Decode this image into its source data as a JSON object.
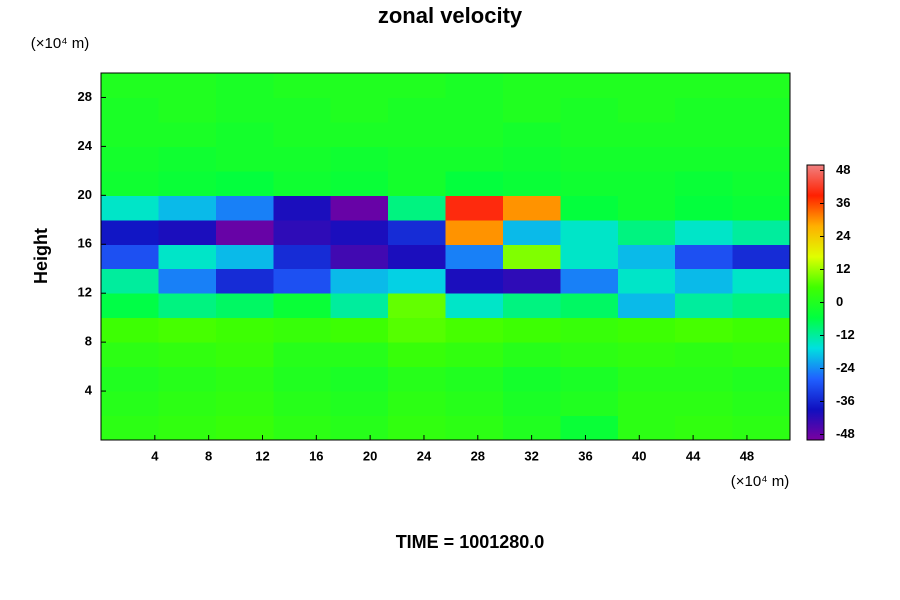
{
  "chart_data": {
    "type": "heatmap",
    "title": "zonal velocity",
    "xlabel_units": "(×10⁴ m)",
    "ylabel": "Height",
    "ylabel_units": "(×10⁴ m)",
    "footer": "TIME = 1001280.0",
    "xlim": [
      0,
      51.2
    ],
    "xticks": [
      4,
      8,
      12,
      16,
      20,
      24,
      28,
      32,
      36,
      40,
      44,
      48
    ],
    "ylim": [
      0,
      30
    ],
    "yticks": [
      4,
      8,
      12,
      16,
      20,
      24,
      28
    ],
    "clim": [
      -50,
      50
    ],
    "cticks": [
      48,
      36,
      24,
      12,
      0,
      -12,
      -24,
      -36,
      -48
    ],
    "colorscale": [
      "#7a00a0",
      "#1010c0",
      "#2060ff",
      "#00e0e0",
      "#00ff40",
      "#40ff00",
      "#e0ff00",
      "#ffb000",
      "#ff2000",
      "#f08080"
    ],
    "z": [
      [
        2,
        3,
        4,
        2,
        1,
        3,
        2,
        0,
        -4,
        2,
        3,
        2
      ],
      [
        1,
        2,
        3,
        1,
        0,
        2,
        1,
        -1,
        0,
        2,
        2,
        1
      ],
      [
        0,
        1,
        2,
        0,
        -1,
        1,
        0,
        -2,
        -1,
        1,
        1,
        0
      ],
      [
        2,
        3,
        4,
        1,
        1,
        4,
        3,
        1,
        2,
        3,
        2,
        3
      ],
      [
        5,
        6,
        5,
        4,
        5,
        7,
        6,
        5,
        4,
        5,
        6,
        5
      ],
      [
        -6,
        -10,
        -8,
        -4,
        -12,
        8,
        -15,
        -10,
        -8,
        -20,
        -12,
        -10
      ],
      [
        -12,
        -25,
        -35,
        -30,
        -20,
        -18,
        -40,
        -42,
        -25,
        -15,
        -20,
        -15
      ],
      [
        -30,
        -15,
        -20,
        -35,
        -44,
        -40,
        -25,
        10,
        -15,
        -20,
        -30,
        -35
      ],
      [
        -38,
        -40,
        -48,
        -42,
        -40,
        -35,
        30,
        -20,
        -15,
        -10,
        -15,
        -12
      ],
      [
        -15,
        -20,
        -25,
        -40,
        -48,
        -10,
        40,
        30,
        -5,
        -3,
        -5,
        -4
      ],
      [
        -3,
        -4,
        -5,
        -3,
        -4,
        -2,
        -5,
        -4,
        -3,
        -3,
        -4,
        -3
      ],
      [
        -2,
        -3,
        -2,
        -2,
        -3,
        -2,
        -2,
        -3,
        -2,
        -2,
        -2,
        -2
      ],
      [
        -1,
        -1,
        -2,
        -1,
        -1,
        -1,
        -1,
        -2,
        -1,
        -1,
        -1,
        -1
      ],
      [
        -1,
        0,
        -1,
        -1,
        0,
        -1,
        -1,
        0,
        -1,
        0,
        -1,
        -1
      ],
      [
        0,
        0,
        -1,
        0,
        0,
        0,
        -1,
        0,
        0,
        0,
        0,
        0
      ]
    ]
  }
}
